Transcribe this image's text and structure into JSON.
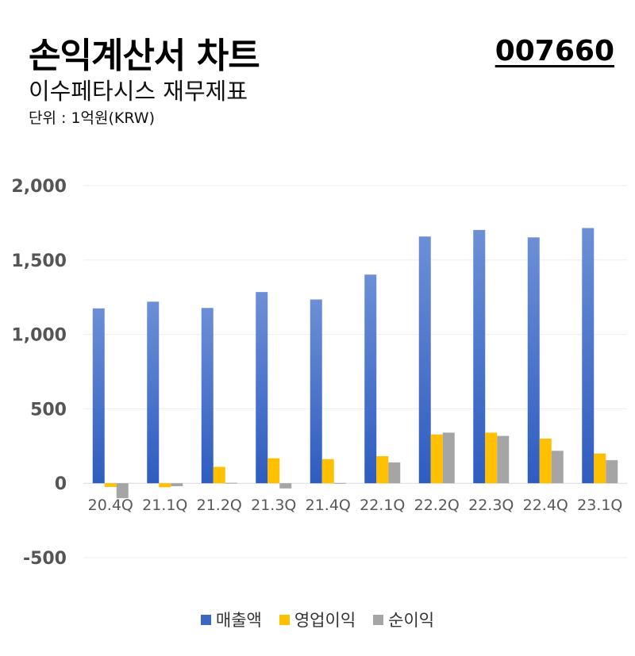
{
  "header": {
    "title": "손익계산서 차트",
    "code": "007660",
    "subtitle": "이수페타시스 재무제표",
    "unit": "단위 : 1억원(KRW)"
  },
  "colors": {
    "revenue": "#3a66c4",
    "operating": "#ffc000",
    "net": "#a5a5a5"
  },
  "chart_data": {
    "type": "bar",
    "categories": [
      "20.4Q",
      "21.1Q",
      "21.2Q",
      "21.3Q",
      "21.4Q",
      "22.1Q",
      "22.2Q",
      "22.3Q",
      "22.4Q",
      "23.1Q"
    ],
    "series": [
      {
        "name": "매출액",
        "values": [
          1175,
          1220,
          1178,
          1285,
          1235,
          1402,
          1658,
          1702,
          1652,
          1715
        ]
      },
      {
        "name": "영업이익",
        "values": [
          -25,
          -27,
          110,
          168,
          162,
          182,
          328,
          340,
          300,
          200
        ]
      },
      {
        "name": "순이익",
        "values": [
          -100,
          -20,
          3,
          -35,
          2,
          140,
          340,
          318,
          218,
          155
        ]
      }
    ],
    "yticks": [
      2000,
      1500,
      1000,
      500,
      0,
      -500
    ],
    "ytick_labels": [
      "2,000",
      "1,500",
      "1,000",
      "500",
      "0",
      "-500"
    ],
    "ylim": [
      -500,
      2000
    ],
    "grid": true,
    "legend_position": "bottom"
  }
}
